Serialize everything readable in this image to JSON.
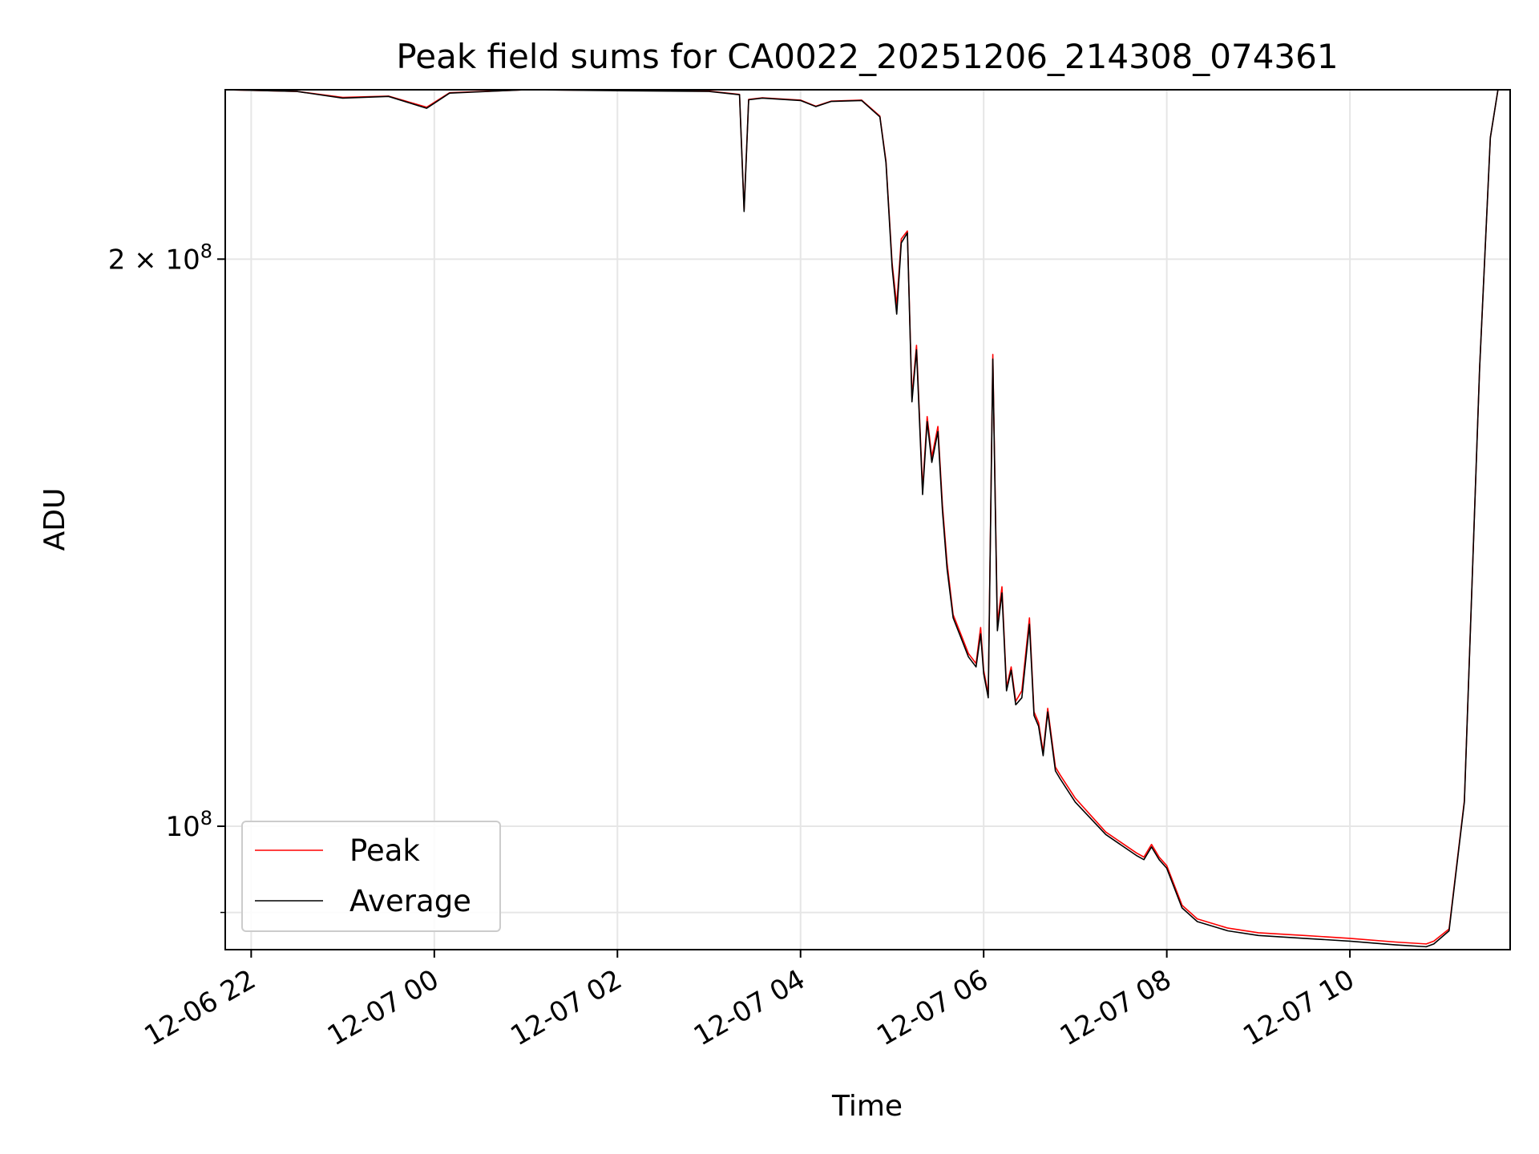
{
  "chart_data": {
    "type": "line",
    "title": "Peak field sums for CA0022_20251206_214308_074361",
    "xlabel": "Time",
    "ylabel": "ADU",
    "y_scale": "log",
    "ylim": [
      86000000,
      246000000
    ],
    "xlim": [
      "2025-12-06 21:43",
      "2025-12-07 11:45"
    ],
    "grid": true,
    "legend_position": "lower-left",
    "x_ticks": [
      {
        "label": "12-06 22",
        "t": "2025-12-06 22:00"
      },
      {
        "label": "12-07 00",
        "t": "2025-12-07 00:00"
      },
      {
        "label": "12-07 02",
        "t": "2025-12-07 02:00"
      },
      {
        "label": "12-07 04",
        "t": "2025-12-07 04:00"
      },
      {
        "label": "12-07 06",
        "t": "2025-12-07 06:00"
      },
      {
        "label": "12-07 08",
        "t": "2025-12-07 08:00"
      },
      {
        "label": "12-07 10",
        "t": "2025-12-07 10:00"
      }
    ],
    "y_ticks": [
      {
        "label": "2 × 10⁸",
        "mant": "2",
        "exp": "8",
        "value": 200000000
      },
      {
        "label": "10⁸",
        "mant": "",
        "exp": "8",
        "value": 100000000
      }
    ],
    "series": [
      {
        "name": "Peak",
        "color": "#ff0000"
      },
      {
        "name": "Average",
        "color": "#000000"
      }
    ],
    "x": [
      "2025-12-06 21:43",
      "2025-12-06 22:30",
      "2025-12-06 23:00",
      "2025-12-06 23:30",
      "2025-12-06 23:55",
      "2025-12-07 00:10",
      "2025-12-07 01:00",
      "2025-12-07 02:00",
      "2025-12-07 03:00",
      "2025-12-07 03:20",
      "2025-12-07 03:23",
      "2025-12-07 03:26",
      "2025-12-07 03:35",
      "2025-12-07 04:00",
      "2025-12-07 04:10",
      "2025-12-07 04:20",
      "2025-12-07 04:40",
      "2025-12-07 04:52",
      "2025-12-07 04:56",
      "2025-12-07 05:00",
      "2025-12-07 05:03",
      "2025-12-07 05:06",
      "2025-12-07 05:10",
      "2025-12-07 05:13",
      "2025-12-07 05:16",
      "2025-12-07 05:20",
      "2025-12-07 05:23",
      "2025-12-07 05:26",
      "2025-12-07 05:30",
      "2025-12-07 05:33",
      "2025-12-07 05:36",
      "2025-12-07 05:40",
      "2025-12-07 05:45",
      "2025-12-07 05:50",
      "2025-12-07 05:55",
      "2025-12-07 05:58",
      "2025-12-07 06:00",
      "2025-12-07 06:03",
      "2025-12-07 06:06",
      "2025-12-07 06:09",
      "2025-12-07 06:12",
      "2025-12-07 06:15",
      "2025-12-07 06:18",
      "2025-12-07 06:21",
      "2025-12-07 06:25",
      "2025-12-07 06:30",
      "2025-12-07 06:33",
      "2025-12-07 06:36",
      "2025-12-07 06:39",
      "2025-12-07 06:42",
      "2025-12-07 06:47",
      "2025-12-07 06:50",
      "2025-12-07 07:00",
      "2025-12-07 07:20",
      "2025-12-07 07:40",
      "2025-12-07 07:45",
      "2025-12-07 07:50",
      "2025-12-07 07:55",
      "2025-12-07 08:00",
      "2025-12-07 08:10",
      "2025-12-07 08:20",
      "2025-12-07 08:40",
      "2025-12-07 09:00",
      "2025-12-07 09:30",
      "2025-12-07 10:00",
      "2025-12-07 10:30",
      "2025-12-07 10:50",
      "2025-12-07 10:55",
      "2025-12-07 11:05",
      "2025-12-07 11:15",
      "2025-12-07 11:25",
      "2025-12-07 11:32",
      "2025-12-07 11:37"
    ],
    "average": [
      246000000,
      245500000,
      243500000,
      244000000,
      240500000,
      245000000,
      246000000,
      245700000,
      245500000,
      244500000,
      212000000,
      243000000,
      243500000,
      242800000,
      241000000,
      242500000,
      242800000,
      238000000,
      225000000,
      198000000,
      187000000,
      204000000,
      206500000,
      168000000,
      179000000,
      150000000,
      164000000,
      156000000,
      162000000,
      147000000,
      137000000,
      129000000,
      126000000,
      123000000,
      121500000,
      126500000,
      120500000,
      117000000,
      177000000,
      127000000,
      133000000,
      118000000,
      121000000,
      116000000,
      117000000,
      128000000,
      114500000,
      113000000,
      109000000,
      115000000,
      107000000,
      106000000,
      103000000,
      99000000,
      96500000,
      96000000,
      97500000,
      96000000,
      95000000,
      90500000,
      89000000,
      88000000,
      87500000,
      87200000,
      86900000,
      86500000,
      86300000,
      86600000,
      88000000,
      103000000,
      175000000,
      232000000,
      246000000
    ],
    "peak": [
      246000000,
      245500000,
      243700000,
      244100000,
      240800000,
      245100000,
      246000000,
      245800000,
      245600000,
      244600000,
      212500000,
      243100000,
      243600000,
      242900000,
      241100000,
      242600000,
      242900000,
      238200000,
      225500000,
      199000000,
      189000000,
      205000000,
      207000000,
      169000000,
      180000000,
      151000000,
      165000000,
      157000000,
      163000000,
      148000000,
      138000000,
      129500000,
      126500000,
      123500000,
      122000000,
      127500000,
      121000000,
      117500000,
      178000000,
      128000000,
      134000000,
      118500000,
      121500000,
      116500000,
      118000000,
      129000000,
      115000000,
      113500000,
      109500000,
      115500000,
      107500000,
      106500000,
      103500000,
      99300000,
      96800000,
      96300000,
      97800000,
      96300000,
      95300000,
      90800000,
      89300000,
      88300000,
      87800000,
      87500000,
      87200000,
      86800000,
      86600000,
      86900000,
      88200000,
      103200000,
      175000000,
      232000000,
      246000000
    ]
  }
}
